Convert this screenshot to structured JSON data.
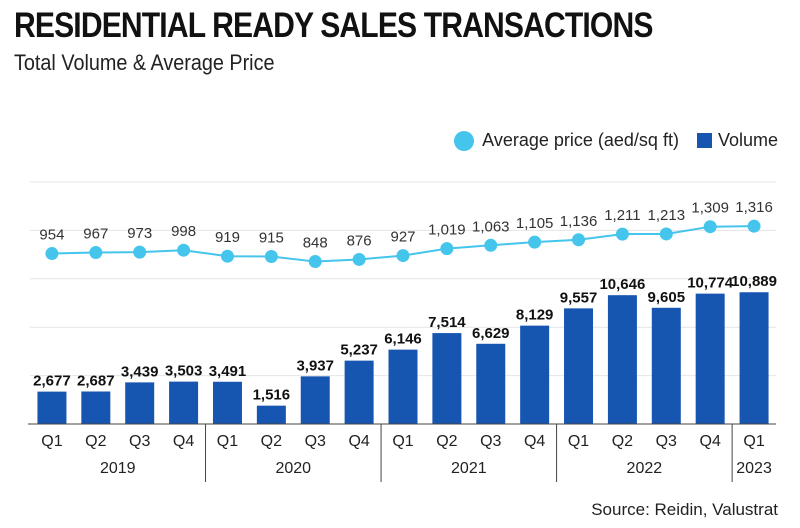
{
  "header": {
    "title": "RESIDENTIAL READY SALES TRANSACTIONS",
    "subtitle": "Total Volume & Average Price"
  },
  "legend": {
    "price": "Average price (aed/sq ft)",
    "volume": "Volume"
  },
  "source": "Source:  Reidin, Valustrat",
  "colors": {
    "bar": "#1756b0",
    "line": "#45c4ec",
    "grid": "#e4e4e4"
  },
  "chart_data": {
    "type": "bar+line",
    "title": "RESIDENTIAL READY SALES TRANSACTIONS",
    "subtitle": "Total Volume & Average Price",
    "categories": [
      "Q1",
      "Q2",
      "Q3",
      "Q4",
      "Q1",
      "Q2",
      "Q3",
      "Q4",
      "Q1",
      "Q2",
      "Q3",
      "Q4",
      "Q1",
      "Q2",
      "Q3",
      "Q4",
      "Q1"
    ],
    "years": [
      {
        "label": "2019",
        "count": 4
      },
      {
        "label": "2020",
        "count": 4
      },
      {
        "label": "2021",
        "count": 4
      },
      {
        "label": "2022",
        "count": 4
      },
      {
        "label": "2023",
        "count": 1
      }
    ],
    "series": [
      {
        "name": "Volume",
        "type": "bar",
        "values": [
          2677,
          2687,
          3439,
          3503,
          3491,
          1516,
          3937,
          5237,
          6146,
          7514,
          6629,
          8129,
          9557,
          10646,
          9605,
          10774,
          10889
        ],
        "labels": [
          "2,677",
          "2,687",
          "3,439",
          "3,503",
          "3,491",
          "1,516",
          "3,937",
          "5,237",
          "6,146",
          "7,514",
          "6,629",
          "8,129",
          "9,557",
          "10,646",
          "9,605",
          "10,774",
          "10,889"
        ]
      },
      {
        "name": "Average price (aed/sq ft)",
        "type": "line",
        "values": [
          954,
          967,
          973,
          998,
          919,
          915,
          848,
          876,
          927,
          1019,
          1063,
          1105,
          1136,
          1211,
          1213,
          1309,
          1316
        ],
        "labels": [
          "954",
          "967",
          "973",
          "998",
          "919",
          "915",
          "848",
          "876",
          "927",
          "1,019",
          "1,063",
          "1,105",
          "1,136",
          "1,211",
          "1,213",
          "1,309",
          "1,316"
        ]
      }
    ],
    "volume_range": [
      0,
      20000
    ],
    "price_range": [
      -1300,
      1900
    ],
    "grid": true,
    "legend_position": "top-right"
  }
}
